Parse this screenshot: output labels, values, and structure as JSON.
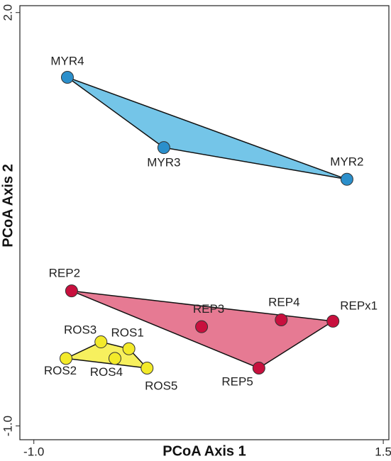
{
  "chart_data": {
    "type": "scatter",
    "xlabel": "PCoA Axis 1",
    "ylabel": "PCoA Axis 2",
    "xlim": [
      -1.1,
      1.54
    ],
    "ylim": [
      -1.1,
      2.05
    ],
    "xticks": [
      {
        "value": -1,
        "label": "-1.0"
      },
      1.5
    ],
    "yticks": [
      {
        "value": -1,
        "label": "-1.0"
      },
      {
        "value": 2,
        "label": "2.0"
      }
    ],
    "hull": true,
    "series": [
      {
        "color": "#2b8fcb",
        "fill": "#74c5e8",
        "labels": [
          "MYR4",
          "MYR3",
          "MYR2"
        ],
        "x": [
          -0.76,
          -0.07,
          1.24
        ],
        "y": [
          1.53,
          1.02,
          0.79
        ]
      },
      {
        "color": "#c8103e",
        "fill": "#e67a93",
        "labels": [
          "REP2",
          "REP3",
          "REP4",
          "REPx1",
          "REP5"
        ],
        "x": [
          -0.73,
          0.2,
          0.77,
          1.14,
          0.61
        ],
        "y": [
          -0.02,
          -0.28,
          -0.23,
          -0.24,
          -0.58
        ]
      },
      {
        "color": "#f3ea2a",
        "fill": "#f7f05e",
        "labels": [
          "ROS3",
          "ROS1",
          "ROS2",
          "ROS4",
          "ROS5"
        ],
        "x": [
          -0.52,
          -0.32,
          -0.77,
          -0.42,
          -0.19
        ],
        "y": [
          -0.39,
          -0.44,
          -0.51,
          -0.51,
          -0.58
        ]
      }
    ]
  }
}
